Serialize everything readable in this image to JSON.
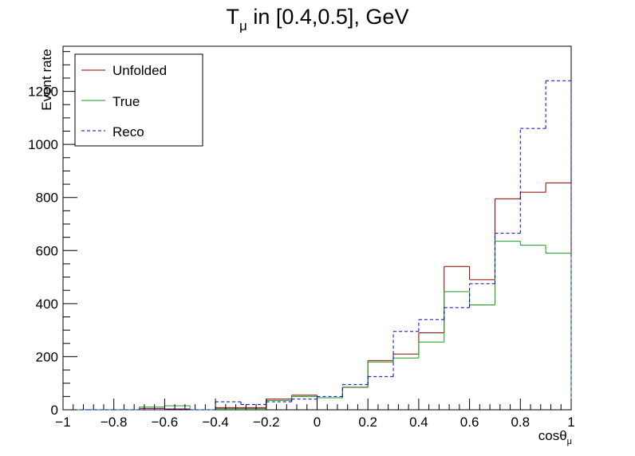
{
  "chart_data": {
    "type": "line",
    "style": "step-histogram",
    "title_main": "T",
    "title_sub": "μ",
    "title_rest": " in [0.4,0.5], GeV",
    "xlabel_main": "cosθ",
    "xlabel_sub": "μ",
    "ylabel": "Event rate",
    "xlim": [
      -1,
      1
    ],
    "ylim": [
      0,
      1370
    ],
    "xticks": [
      -1,
      -0.8,
      -0.6,
      -0.4,
      -0.2,
      0,
      0.2,
      0.4,
      0.6,
      0.8,
      1
    ],
    "xtick_labels": [
      "−1",
      "−0.8",
      "−0.6",
      "−0.4",
      "−0.2",
      "0",
      "0.2",
      "0.4",
      "0.6",
      "0.8",
      "1"
    ],
    "yticks": [
      0,
      200,
      400,
      600,
      800,
      1000,
      1200
    ],
    "ytick_labels": [
      "0",
      "200",
      "400",
      "600",
      "800",
      "1000",
      "1200"
    ],
    "bin_edges": [
      -1,
      -0.9,
      -0.8,
      -0.7,
      -0.6,
      -0.5,
      -0.4,
      -0.3,
      -0.2,
      -0.1,
      0,
      0.1,
      0.2,
      0.3,
      0.4,
      0.5,
      0.6,
      0.7,
      0.8,
      0.9,
      1
    ],
    "grid": false,
    "legend_position": "top-left",
    "series": [
      {
        "name": "Unfolded",
        "color": "#8b0000",
        "dashed": false,
        "values": [
          0,
          0,
          0,
          5,
          3,
          0,
          8,
          8,
          40,
          55,
          45,
          85,
          185,
          210,
          290,
          540,
          490,
          795,
          820,
          855
        ]
      },
      {
        "name": "True",
        "color": "#1a9a1a",
        "dashed": false,
        "values": [
          0,
          0,
          0,
          10,
          15,
          0,
          5,
          5,
          35,
          50,
          45,
          85,
          180,
          195,
          255,
          445,
          395,
          635,
          620,
          590
        ]
      },
      {
        "name": "Reco",
        "color": "#0000cc",
        "dashed": true,
        "values": [
          0,
          0,
          0,
          0,
          0,
          0,
          30,
          20,
          30,
          40,
          50,
          95,
          125,
          295,
          340,
          385,
          475,
          665,
          1060,
          1240
        ]
      }
    ]
  }
}
